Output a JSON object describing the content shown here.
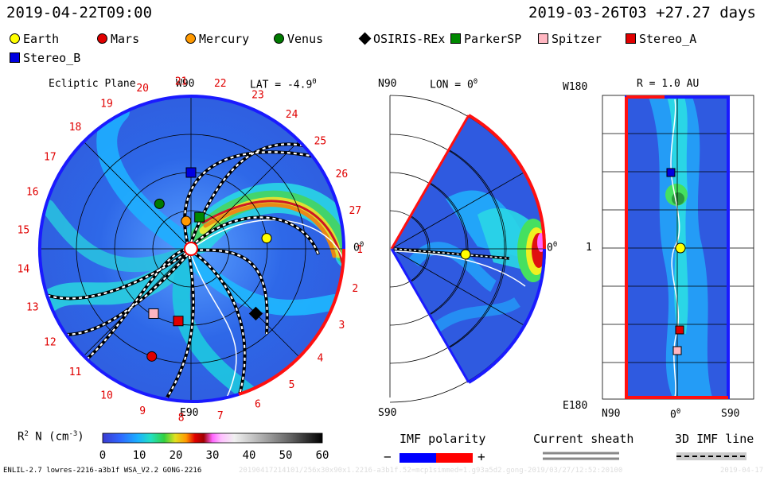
{
  "header": {
    "left_time": "2019-04-22T09:00",
    "right_time": "2019-03-26T03 +27.27 days"
  },
  "legend": {
    "items": [
      {
        "label": "Earth",
        "shape": "circle",
        "color": "#ffff00"
      },
      {
        "label": "Mars",
        "shape": "circle",
        "color": "#e00000"
      },
      {
        "label": "Mercury",
        "shape": "circle",
        "color": "#ff9900"
      },
      {
        "label": "Venus",
        "shape": "circle",
        "color": "#007a00"
      },
      {
        "label": "OSIRIS-REx",
        "shape": "diamond",
        "color": "#000000"
      },
      {
        "label": "ParkerSP",
        "shape": "square",
        "color": "#008800"
      },
      {
        "label": "Spitzer",
        "shape": "square",
        "color": "#ffb6c1"
      },
      {
        "label": "Stereo_A",
        "shape": "square",
        "color": "#e00000"
      },
      {
        "label": "Stereo_B",
        "shape": "square",
        "color": "#0000e0"
      }
    ]
  },
  "panels": {
    "ecliptic": {
      "title": "Ecliptic Plane",
      "lat": "LAT = -4.9",
      "deg": "0",
      "top_label": "W90",
      "bottom_label": "E90",
      "right_label": "0",
      "right_deg": "0",
      "sector_numbers": [
        "1",
        "2",
        "3",
        "4",
        "5",
        "6",
        "7",
        "8",
        "9",
        "10",
        "11",
        "12",
        "13",
        "14",
        "15",
        "16",
        "17",
        "18",
        "19",
        "20",
        "21",
        "22",
        "23",
        "24",
        "25",
        "26",
        "27"
      ]
    },
    "meridional": {
      "top_label": "N90",
      "lon": "LON = 0",
      "deg": "0",
      "bottom_label": "S90",
      "right_label": "0",
      "right_deg": "0"
    },
    "radial": {
      "title": "R = 1.0 AU",
      "top_left": "W180",
      "mid_left": "1",
      "bottom_left": "E180",
      "x_left": "N90",
      "x_mid": "0",
      "x_mid_deg": "0",
      "x_right": "S90"
    }
  },
  "colorbar": {
    "label": "R",
    "label_sup": "2",
    "label_rest": " N (cm",
    "label_exp": "-3",
    "label_end": ")",
    "ticks": [
      "0",
      "10",
      "20",
      "30",
      "40",
      "50",
      "60"
    ]
  },
  "imf_polarity": {
    "title": "IMF polarity",
    "minus": "−",
    "plus": "+",
    "neg_color": "#0000ff",
    "pos_color": "#ff0000"
  },
  "current_sheath": {
    "title": "Current sheath"
  },
  "imf_line": {
    "title": "3D IMF line"
  },
  "footer": {
    "model": "ENLIL-2.7 lowres-2216-a3b1f WSA_V2.2 GONG-2216",
    "run_id": "20190417214101/256x30x90x1.2216-a3b1f.52=mcp1simmed=1.g93a5d2.gong-2019/03/27/12:52:20100",
    "date": "2019-04-17"
  },
  "chart_data": {
    "type": "heatmap",
    "title": "Solar wind density R^2 N (cm^-3)",
    "colorbar_range": [
      0,
      60
    ],
    "colorbar_ticks": [
      0,
      10,
      20,
      30,
      40,
      50,
      60
    ],
    "objects": [
      {
        "name": "Earth",
        "ecliptic_angle_deg": 8,
        "r_au": 1.0
      },
      {
        "name": "Mercury",
        "ecliptic_angle_deg": 100,
        "r_au": 0.37
      },
      {
        "name": "Venus",
        "ecliptic_angle_deg": 125,
        "r_au": 0.72
      },
      {
        "name": "Mars",
        "ecliptic_angle_deg": -110,
        "r_au": 1.5
      },
      {
        "name": "ParkerSP",
        "ecliptic_angle_deg": 75,
        "r_au": 0.43
      },
      {
        "name": "Stereo_B",
        "ecliptic_angle_deg": 90,
        "r_au": 1.0
      },
      {
        "name": "Stereo_A",
        "ecliptic_angle_deg": -100,
        "r_au": 0.96
      },
      {
        "name": "Spitzer",
        "ecliptic_angle_deg": -120,
        "r_au": 0.98
      },
      {
        "name": "OSIRIS-REx",
        "ecliptic_angle_deg": -45,
        "r_au": 1.2
      }
    ]
  }
}
